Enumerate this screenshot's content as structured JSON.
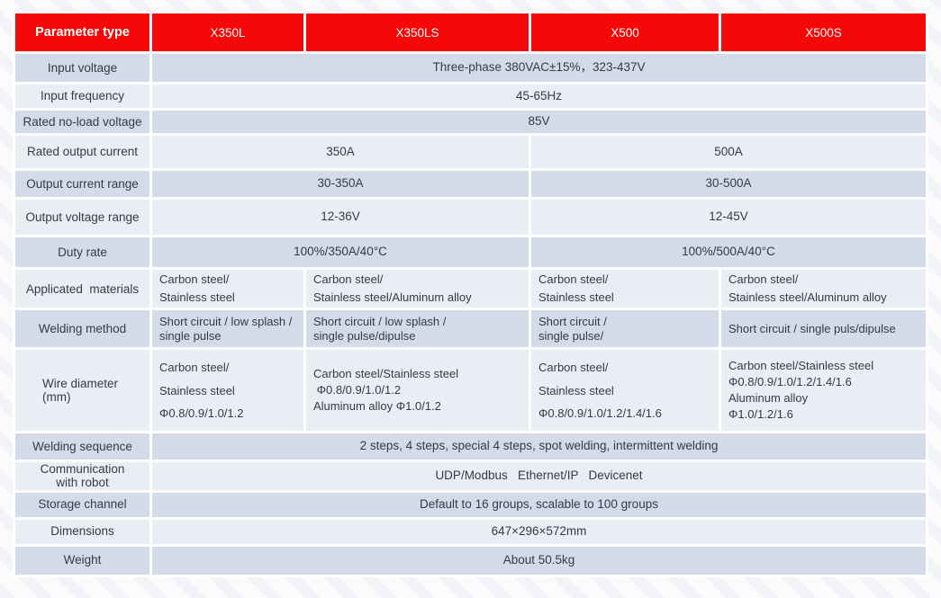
{
  "title": "Welding power source specification table",
  "colors": {
    "header_red": "#f70808",
    "header_text": "#ffffff",
    "row_dark": "#d3dbe8",
    "row_light": "#e9edf4",
    "body_text": "#353b45",
    "gap_white": "#ffffff"
  },
  "table": {
    "header": {
      "param_label": "Parameter type",
      "models": [
        "X350L",
        "X350LS",
        "X500",
        "X500S"
      ]
    },
    "rows": [
      {
        "key": "input-voltage",
        "label_lines": [
          "Input voltage"
        ],
        "cells": [
          {
            "span": 4,
            "lines": [
              "Three-phase 380VAC±15%，323-437V"
            ]
          }
        ]
      },
      {
        "key": "input-frequency",
        "label_lines": [
          "Input frequency"
        ],
        "cells": [
          {
            "span": 4,
            "lines": [
              "45-65Hz"
            ]
          }
        ]
      },
      {
        "key": "rated-no-load-voltage",
        "label_lines": [
          "Rated no-load voltage"
        ],
        "cells": [
          {
            "span": 4,
            "lines": [
              "85V"
            ]
          }
        ]
      },
      {
        "key": "rated-output-current",
        "label_lines": [
          "Rated output current"
        ],
        "cells": [
          {
            "span": 2,
            "lines": [
              "350A"
            ]
          },
          {
            "span": 2,
            "lines": [
              "500A"
            ]
          }
        ]
      },
      {
        "key": "output-current-range",
        "label_lines": [
          "Output current range"
        ],
        "cells": [
          {
            "span": 2,
            "lines": [
              "30-350A"
            ]
          },
          {
            "span": 2,
            "lines": [
              "30-500A"
            ]
          }
        ]
      },
      {
        "key": "output-voltage-range",
        "label_lines": [
          "Output voltage range"
        ],
        "cells": [
          {
            "span": 2,
            "lines": [
              "12-36V"
            ]
          },
          {
            "span": 2,
            "lines": [
              "12-45V"
            ]
          }
        ]
      },
      {
        "key": "duty-rate",
        "label_lines": [
          "Duty rate"
        ],
        "cells": [
          {
            "span": 2,
            "lines": [
              "100%/350A/40°C"
            ]
          },
          {
            "span": 2,
            "lines": [
              "100%/500A/40°C"
            ]
          }
        ]
      },
      {
        "key": "applicated-materials",
        "label_lines": [
          "Applicated  materials"
        ],
        "cells": [
          {
            "span": 1,
            "align": "left",
            "lines": [
              "Carbon steel/",
              "Stainless steel"
            ]
          },
          {
            "span": 1,
            "align": "left",
            "lines": [
              "Carbon steel/",
              "Stainless steel/Aluminum alloy"
            ]
          },
          {
            "span": 1,
            "align": "left",
            "lines": [
              "Carbon steel/",
              "Stainless steel"
            ]
          },
          {
            "span": 1,
            "align": "left",
            "lines": [
              "Carbon steel/",
              "Stainless steel/Aluminum alloy"
            ]
          }
        ]
      },
      {
        "key": "welding-method",
        "label_lines": [
          "Welding method"
        ],
        "cells": [
          {
            "span": 1,
            "align": "left",
            "lines": [
              "Short circuit / low splash /",
              "single pulse"
            ]
          },
          {
            "span": 1,
            "align": "left",
            "lines": [
              "Short circuit / low splash /",
              "single pulse/dipulse"
            ]
          },
          {
            "span": 1,
            "align": "left",
            "lines": [
              "Short circuit /",
              "single pulse/"
            ]
          },
          {
            "span": 1,
            "align": "left",
            "lines": [
              "Short circuit / single puls/dipulse"
            ]
          }
        ]
      },
      {
        "key": "wire-diameter-mm",
        "label_lines": [
          "Wire diameter",
          "(mm)"
        ],
        "cells": [
          {
            "span": 1,
            "align": "left",
            "lines": [
              "Carbon steel/",
              "Stainless steel",
              "Φ0.8/0.9/1.0/1.2"
            ]
          },
          {
            "span": 1,
            "align": "left",
            "lines": [
              "Carbon steel/Stainless steel",
              " Φ0.8/0.9/1.0/1.2",
              "Aluminum alloy Φ1.0/1.2"
            ]
          },
          {
            "span": 1,
            "align": "left",
            "lines": [
              "Carbon steel/",
              "Stainless steel",
              "Φ0.8/0.9/1.0/1.2/1.4/1.6"
            ]
          },
          {
            "span": 1,
            "align": "left",
            "lines": [
              "Carbon steel/Stainless steel",
              "Φ0.8/0.9/1.0/1.2/1.4/1.6",
              "Aluminum alloy",
              "Φ1.0/1.2/1.6"
            ]
          }
        ]
      },
      {
        "key": "welding-sequence",
        "label_lines": [
          "Welding sequence"
        ],
        "cells": [
          {
            "span": 4,
            "lines": [
              "2 steps, 4 steps, special 4 steps, spot welding, intermittent welding"
            ]
          }
        ]
      },
      {
        "key": "communication-with-robot",
        "label_lines": [
          "Communication",
          "with robot"
        ],
        "cells": [
          {
            "span": 4,
            "lines": [
              "UDP/Modbus   Ethernet/IP   Devicenet"
            ]
          }
        ]
      },
      {
        "key": "storage-channel",
        "label_lines": [
          "Storage channel"
        ],
        "cells": [
          {
            "span": 4,
            "lines": [
              "Default to 16 groups, scalable to 100 groups"
            ]
          }
        ]
      },
      {
        "key": "dimensions",
        "label_lines": [
          "Dimensions"
        ],
        "cells": [
          {
            "span": 4,
            "lines": [
              "647×296×572mm"
            ]
          }
        ]
      },
      {
        "key": "weight",
        "label_lines": [
          "Weight"
        ],
        "cells": [
          {
            "span": 4,
            "lines": [
              "About 50.5kg"
            ]
          }
        ]
      }
    ]
  }
}
